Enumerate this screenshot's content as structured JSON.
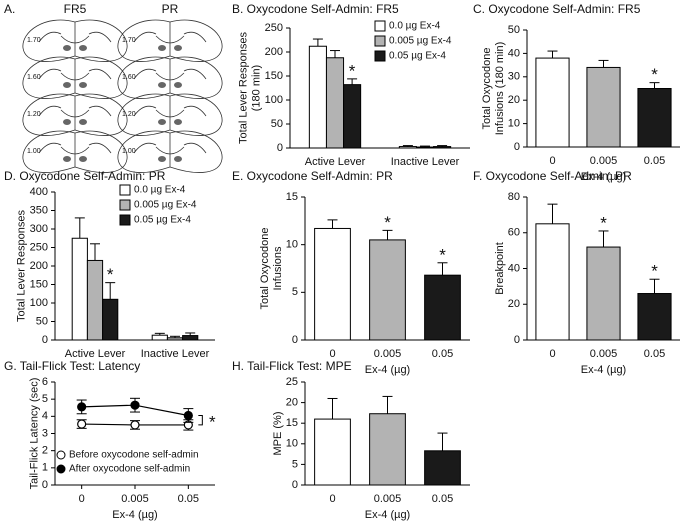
{
  "atlas": {
    "label": "A.",
    "titles": [
      "FR5",
      "PR"
    ],
    "levels": [
      "1.70",
      "1.60",
      "1.20",
      "1.00"
    ]
  },
  "chart_data": [
    {
      "type": "bar",
      "title": "B. Oxycodone Self-Admin: FR5",
      "ylabel": [
        "Total Lever Responses",
        "(180 min)"
      ],
      "categories": [
        "Active Lever",
        "Inactive Lever"
      ],
      "series": [
        {
          "name": "0.0 µg Ex-4",
          "color": "#ffffff",
          "values": [
            212,
            3
          ],
          "errors": [
            15,
            2
          ]
        },
        {
          "name": "0.005 µg Ex-4",
          "color": "#b3b3b3",
          "values": [
            188,
            2
          ],
          "errors": [
            15,
            2
          ]
        },
        {
          "name": "0.05 µg Ex-4",
          "color": "#1a1a1a",
          "values": [
            132,
            3
          ],
          "errors": [
            12,
            2
          ]
        }
      ],
      "ylim": [
        0,
        250
      ],
      "yticks": [
        0,
        50,
        100,
        150,
        200,
        250
      ],
      "legend": "upper right",
      "annotations": [
        {
          "text": "*",
          "category": "Active Lever",
          "series": "0.05 µg Ex-4"
        }
      ]
    },
    {
      "type": "bar",
      "title": "C. Oxycodone Self-Admin: FR5",
      "ylabel": [
        "Total Oxycodone",
        "Infusions (180 min)"
      ],
      "xlabel": "Ex-4 (µg)",
      "categories": [
        "0",
        "0.005",
        "0.05"
      ],
      "values": [
        38,
        34,
        25
      ],
      "errors": [
        3,
        3,
        2.5
      ],
      "colors": [
        "#ffffff",
        "#b3b3b3",
        "#1a1a1a"
      ],
      "ylim": [
        0,
        50
      ],
      "yticks": [
        0,
        10,
        20,
        30,
        40,
        50
      ],
      "annotations": [
        {
          "text": "*",
          "category": "0.05"
        }
      ]
    },
    {
      "type": "bar",
      "title": "D. Oxycodone Self-Admin: PR",
      "ylabel": [
        "Total Lever Responses"
      ],
      "categories": [
        "Active Lever",
        "Inactive Lever"
      ],
      "series": [
        {
          "name": "0.0 µg Ex-4",
          "color": "#ffffff",
          "values": [
            275,
            13
          ],
          "errors": [
            55,
            5
          ]
        },
        {
          "name": "0.005 µg Ex-4",
          "color": "#b3b3b3",
          "values": [
            215,
            6
          ],
          "errors": [
            45,
            4
          ]
        },
        {
          "name": "0.05 µg Ex-4",
          "color": "#1a1a1a",
          "values": [
            110,
            12
          ],
          "errors": [
            45,
            7
          ]
        }
      ],
      "ylim": [
        0,
        400
      ],
      "yticks": [
        0,
        50,
        100,
        150,
        200,
        250,
        300,
        350,
        400
      ],
      "legend": "upper right",
      "annotations": [
        {
          "text": "*",
          "category": "Active Lever",
          "series": "0.05 µg Ex-4"
        }
      ]
    },
    {
      "type": "bar",
      "title": "E. Oxycodone Self-Admin: PR",
      "ylabel": [
        "Total Oxycodone",
        "Infusions"
      ],
      "xlabel": "Ex-4 (µg)",
      "categories": [
        "0",
        "0.005",
        "0.05"
      ],
      "values": [
        11.7,
        10.5,
        6.8
      ],
      "errors": [
        0.9,
        1,
        1.3
      ],
      "colors": [
        "#ffffff",
        "#b3b3b3",
        "#1a1a1a"
      ],
      "ylim": [
        0,
        15
      ],
      "yticks": [
        0,
        5,
        10,
        15
      ],
      "annotations": [
        {
          "text": "*",
          "category": "0.005"
        },
        {
          "text": "*",
          "category": "0.05"
        }
      ]
    },
    {
      "type": "bar",
      "title": "F. Oxycodone Self-Admin: PR",
      "ylabel": [
        "Breakpoint"
      ],
      "xlabel": "Ex-4 (µg)",
      "categories": [
        "0",
        "0.005",
        "0.05"
      ],
      "values": [
        65,
        52,
        26
      ],
      "errors": [
        11,
        9,
        8
      ],
      "colors": [
        "#ffffff",
        "#b3b3b3",
        "#1a1a1a"
      ],
      "ylim": [
        0,
        80
      ],
      "yticks": [
        0,
        20,
        40,
        60,
        80
      ],
      "annotations": [
        {
          "text": "*",
          "category": "0.005"
        },
        {
          "text": "*",
          "category": "0.05"
        }
      ]
    },
    {
      "type": "line",
      "title": "G. Tail-Flick Test: Latency",
      "ylabel": [
        "Tail-Flick Latency (sec)"
      ],
      "xlabel": "Ex-4 (µg)",
      "categories": [
        "0",
        "0.005",
        "0.05"
      ],
      "series": [
        {
          "name": "Before oxycodone self-admin",
          "color": "#000000",
          "marker_fill": "#ffffff",
          "values": [
            3.55,
            3.5,
            3.5
          ],
          "errors": [
            0.25,
            0.25,
            0.3
          ]
        },
        {
          "name": "After oxycodone self-admin",
          "color": "#000000",
          "marker_fill": "#000000",
          "values": [
            4.55,
            4.65,
            4.05
          ],
          "errors": [
            0.4,
            0.4,
            0.4
          ]
        }
      ],
      "ylim": [
        0,
        6
      ],
      "yticks": [
        0,
        1,
        2,
        3,
        4,
        5,
        6
      ],
      "legend": "lower left",
      "annotations": [
        {
          "text": "*",
          "category": "0.05"
        }
      ]
    },
    {
      "type": "bar",
      "title": "H. Tail-Flick Test: MPE",
      "ylabel": [
        "MPE (%)"
      ],
      "xlabel": "Ex-4 (µg)",
      "categories": [
        "0",
        "0.005",
        "0.05"
      ],
      "values": [
        16,
        17.3,
        8.3
      ],
      "errors": [
        5,
        4.2,
        4.3
      ],
      "colors": [
        "#ffffff",
        "#b3b3b3",
        "#1a1a1a"
      ],
      "ylim": [
        0,
        25
      ],
      "yticks": [
        0,
        5,
        10,
        15,
        20,
        25
      ]
    }
  ]
}
